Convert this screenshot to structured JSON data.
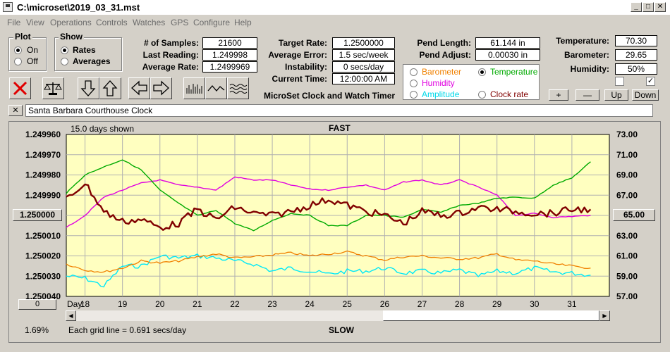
{
  "window": {
    "title": "C:\\microset\\2019_03_31.mst"
  },
  "menu": [
    "File",
    "View",
    "Operations",
    "Controls",
    "Watches",
    "GPS",
    "Configure",
    "Help"
  ],
  "plot_group": {
    "label": "Plot",
    "on": "On",
    "off": "Off"
  },
  "show_group": {
    "label": "Show",
    "rates": "Rates",
    "averages": "Averages"
  },
  "stats": {
    "samples_label": "# of Samples:",
    "samples": "21600",
    "last_label": "Last Reading:",
    "last": "1.249998",
    "avg_label": "Average Rate:",
    "avg": "1.2499969",
    "target_label": "Target Rate:",
    "target": "1.2500000",
    "err_label": "Average Error:",
    "err": "1.5 sec/week",
    "instab_label": "Instability:",
    "instab": "0 secs/day",
    "time_label": "Current Time:",
    "time": "12:00:00 AM",
    "pendlen_label": "Pend Length:",
    "pendlen": "61.144 in",
    "pendadj_label": "Pend Adjust:",
    "pendadj": "0.00030 in",
    "temp_label": "Temperature:",
    "temp": "70.30",
    "baro_label": "Barometer:",
    "baro": "29.65",
    "hum_label": "Humidity:",
    "hum": "50%"
  },
  "app_caption": "MicroSet Clock and Watch Timer",
  "overlay": {
    "barometer": "Barometer",
    "temperature": "Temperature",
    "humidity": "Humidity",
    "amplitude": "Amplitude",
    "clockrate": "Clock rate"
  },
  "step_buttons": {
    "plus": "+",
    "minus": "—",
    "up": "Up",
    "down": "Down"
  },
  "clock_name": "Santa Barbara Courthouse Clock",
  "chart_header": {
    "days_shown": "15.0 days shown",
    "fast": "FAST",
    "slow": "SLOW"
  },
  "footer": {
    "percent": "1.69%",
    "grid_note": "Each grid line = 0.691 secs/day",
    "zero_button": "0",
    "day_label": "Day:"
  },
  "colors": {
    "plot_bg": "#ffffc0",
    "rate": "#800000",
    "temperature": "#00aa00",
    "humidity": "#e000e0",
    "barometer": "#f08000",
    "amplitude": "#00e8f8"
  },
  "chart_data": {
    "type": "line",
    "x": [
      17.5,
      18,
      18.5,
      19,
      19.5,
      20,
      20.5,
      21,
      21.5,
      22,
      22.5,
      23,
      23.5,
      24,
      24.5,
      25,
      25.5,
      26,
      26.5,
      27,
      27.5,
      28,
      28.5,
      29,
      29.5,
      30,
      30.5,
      31,
      31.5
    ],
    "x_ticks": [
      "18",
      "19",
      "20",
      "21",
      "22",
      "23",
      "24",
      "25",
      "26",
      "27",
      "28",
      "29",
      "30",
      "31"
    ],
    "y_left_ticks": [
      "1.249960",
      "1.249970",
      "1.249980",
      "1.249990",
      "1.250000",
      "1.250010",
      "1.250020",
      "1.250030",
      "1.250040"
    ],
    "y_left_highlight": "1.250000",
    "y_right_ticks": [
      "73.00",
      "71.00",
      "69.00",
      "67.00",
      "65.00",
      "63.00",
      "61.00",
      "59.00",
      "57.00"
    ],
    "y_right_highlight": "65.00",
    "ylim_left": [
      1.24996,
      1.25004
    ],
    "ylim_right": [
      57,
      73
    ],
    "series": [
      {
        "name": "Clock rate",
        "values": [
          1.249992,
          1.249984,
          1.249998,
          1.250003,
          1.250002,
          1.250006,
          1.250004,
          1.249997,
          1.250002,
          1.249996,
          1.249999,
          1.25,
          1.249998,
          1.249995,
          1.249992,
          1.249995,
          1.249998,
          1.25,
          1.250004,
          1.249998,
          1.25,
          1.249999,
          1.249996,
          1.249997,
          1.249998,
          1.249999,
          1.249999,
          1.249997,
          1.249997
        ]
      },
      {
        "name": "Temperature",
        "values": [
          67.2,
          69.0,
          69.8,
          70.5,
          69.5,
          67.5,
          66.2,
          65.0,
          65.5,
          64.2,
          63.5,
          64.5,
          65.2,
          65.0,
          64.0,
          64.0,
          65.0,
          65.0,
          64.8,
          65.6,
          65.3,
          66.0,
          66.2,
          66.7,
          66.8,
          66.7,
          68.0,
          68.7,
          70.3
        ]
      },
      {
        "name": "Humidity",
        "values": [
          63.8,
          65.0,
          66.8,
          67.5,
          68.2,
          68.5,
          68.0,
          67.8,
          67.5,
          68.8,
          68.5,
          68.5,
          68.0,
          67.6,
          67.5,
          67.8,
          68.0,
          67.5,
          68.3,
          68.5,
          68.0,
          68.5,
          67.8,
          67.0,
          65.0,
          65.2,
          64.8,
          64.9,
          65.0
        ]
      },
      {
        "name": "Barometer",
        "values": [
          60.2,
          59.6,
          59.4,
          59.8,
          60.5,
          60.3,
          60.5,
          60.9,
          61.2,
          60.8,
          60.9,
          61.1,
          61.3,
          61.0,
          61.2,
          61.4,
          61.0,
          60.6,
          60.9,
          61.0,
          60.8,
          60.7,
          60.8,
          61.2,
          60.6,
          60.5,
          60.2,
          60.0,
          59.8
        ]
      },
      {
        "name": "Amplitude",
        "values": [
          59.0,
          58.8,
          58.0,
          60.0,
          60.0,
          61.0,
          60.8,
          61.0,
          60.8,
          60.5,
          60.2,
          59.5,
          59.8,
          59.5,
          59.2,
          59.5,
          59.5,
          59.8,
          59.3,
          59.5,
          59.3,
          59.6,
          59.0,
          59.5,
          59.3,
          59.8,
          59.4,
          59.3,
          59.1
        ]
      }
    ]
  }
}
